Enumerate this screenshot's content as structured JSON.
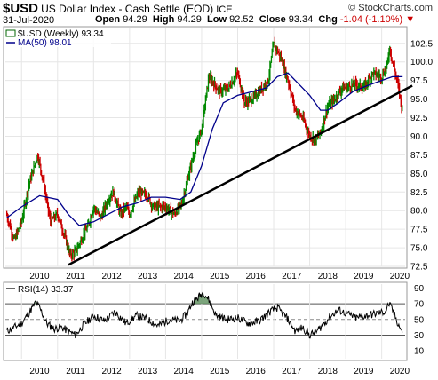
{
  "header": {
    "symbol": "$USD",
    "description": "US Dollar Index - Cash Settle (EOD)",
    "exchange": "ICE",
    "brand": "© StockCharts.com",
    "date": "31-Jul-2020",
    "open_label": "Open",
    "open": "94.29",
    "high_label": "High",
    "high": "94.29",
    "low_label": "Low",
    "low": "92.52",
    "close_label": "Close",
    "close": "93.34",
    "chg_label": "Chg",
    "chg": "-1.04 (-1.10%)"
  },
  "legend": {
    "price": "$USD (Weekly) 93.34",
    "ma": "MA(50) 98.01",
    "rsi": "RSI(14) 33.37"
  },
  "colors": {
    "up_bar": "#008800",
    "down_bar": "#cc0000",
    "ma_line": "#00008b",
    "trend_line": "#000000",
    "rsi_line": "#000000",
    "rsi_fill": "#5b8f5b"
  },
  "chart_data": [
    {
      "type": "line",
      "title": "$USD (Weekly) 93.34",
      "x_ticks": [
        "2010",
        "2011",
        "2012",
        "2013",
        "2014",
        "2015",
        "2016",
        "2017",
        "2018",
        "2019",
        "2020"
      ],
      "y_ticks": [
        "102.5",
        "100.0",
        "97.5",
        "95.0",
        "92.5",
        "90.0",
        "87.5",
        "85.0",
        "82.5",
        "80.0",
        "77.5",
        "75.0",
        "72.5"
      ],
      "ylim": [
        72.5,
        104.5
      ],
      "series": [
        {
          "name": "$USD (Weekly)",
          "x": [
            2009.58,
            2009.8,
            2010.0,
            2010.2,
            2010.45,
            2010.6,
            2010.8,
            2011.0,
            2011.2,
            2011.35,
            2011.5,
            2011.7,
            2011.85,
            2012.0,
            2012.2,
            2012.4,
            2012.55,
            2012.75,
            2012.9,
            2013.0,
            2013.25,
            2013.5,
            2013.65,
            2013.8,
            2014.0,
            2014.25,
            2014.45,
            2014.6,
            2014.8,
            2015.0,
            2015.2,
            2015.5,
            2015.75,
            2016.0,
            2016.2,
            2016.4,
            2016.6,
            2016.85,
            2017.0,
            2017.2,
            2017.4,
            2017.6,
            2017.8,
            2018.0,
            2018.15,
            2018.3,
            2018.5,
            2018.7,
            2018.9,
            2019.0,
            2019.25,
            2019.5,
            2019.75,
            2020.0,
            2020.15,
            2020.22,
            2020.3,
            2020.45,
            2020.58
          ],
          "values": [
            79.5,
            76.0,
            78.5,
            83.5,
            87.5,
            84.0,
            78.5,
            79.5,
            76.5,
            74.0,
            74.5,
            76.5,
            78.0,
            80.5,
            79.0,
            81.5,
            82.5,
            79.5,
            80.5,
            79.5,
            82.5,
            82.0,
            80.5,
            80.5,
            80.5,
            79.5,
            81.0,
            84.0,
            88.0,
            91.0,
            98.0,
            96.0,
            96.5,
            98.5,
            94.5,
            95.0,
            96.0,
            97.5,
            102.5,
            100.5,
            97.5,
            93.5,
            92.5,
            90.0,
            89.5,
            90.5,
            94.0,
            95.0,
            96.5,
            96.5,
            97.0,
            96.5,
            98.5,
            98.0,
            99.5,
            102.0,
            100.0,
            97.0,
            93.34
          ]
        },
        {
          "name": "MA(50)",
          "x": [
            2009.58,
            2010.0,
            2010.5,
            2011.0,
            2011.3,
            2011.6,
            2012.0,
            2012.4,
            2012.8,
            2013.2,
            2013.6,
            2014.0,
            2014.4,
            2014.7,
            2015.0,
            2015.3,
            2015.6,
            2016.0,
            2016.4,
            2016.8,
            2017.1,
            2017.4,
            2017.7,
            2018.0,
            2018.3,
            2018.5,
            2018.8,
            2019.2,
            2019.6,
            2020.0,
            2020.3,
            2020.58
          ],
          "values": [
            79.0,
            80.5,
            82.0,
            81.5,
            79.5,
            78.0,
            78.5,
            79.5,
            80.5,
            81.0,
            81.8,
            81.8,
            81.5,
            82.5,
            86.0,
            91.0,
            94.5,
            95.5,
            96.0,
            96.5,
            98.0,
            98.5,
            97.0,
            95.5,
            93.5,
            93.5,
            94.5,
            96.0,
            96.8,
            97.5,
            98.0,
            98.01
          ]
        },
        {
          "name": "Trendline",
          "x": [
            2011.3,
            2020.85
          ],
          "values": [
            72.7,
            96.8
          ]
        }
      ]
    },
    {
      "type": "line",
      "title": "RSI(14) 33.37",
      "y_ticks": [
        "90",
        "70",
        "50",
        "30",
        "10"
      ],
      "ylim": [
        0,
        95
      ],
      "reference_lines": [
        70,
        50,
        30
      ],
      "series": [
        {
          "name": "RSI(14)",
          "x": [
            2009.58,
            2009.8,
            2010.0,
            2010.2,
            2010.4,
            2010.5,
            2010.7,
            2010.9,
            2011.1,
            2011.3,
            2011.5,
            2011.7,
            2012.0,
            2012.3,
            2012.6,
            2012.9,
            2013.2,
            2013.5,
            2013.8,
            2014.1,
            2014.4,
            2014.6,
            2014.75,
            2014.9,
            2015.05,
            2015.2,
            2015.4,
            2015.7,
            2016.0,
            2016.3,
            2016.6,
            2016.9,
            2017.1,
            2017.4,
            2017.6,
            2017.8,
            2018.0,
            2018.2,
            2018.4,
            2018.6,
            2018.8,
            2019.0,
            2019.3,
            2019.6,
            2019.9,
            2020.1,
            2020.2,
            2020.3,
            2020.45,
            2020.58
          ],
          "values": [
            35,
            40,
            45,
            58,
            72,
            65,
            45,
            38,
            40,
            35,
            30,
            42,
            55,
            48,
            60,
            45,
            55,
            50,
            42,
            50,
            48,
            58,
            72,
            78,
            85,
            75,
            55,
            50,
            52,
            45,
            48,
            60,
            65,
            50,
            35,
            40,
            30,
            35,
            45,
            55,
            62,
            58,
            52,
            55,
            58,
            60,
            70,
            62,
            45,
            33.37
          ]
        }
      ]
    }
  ]
}
